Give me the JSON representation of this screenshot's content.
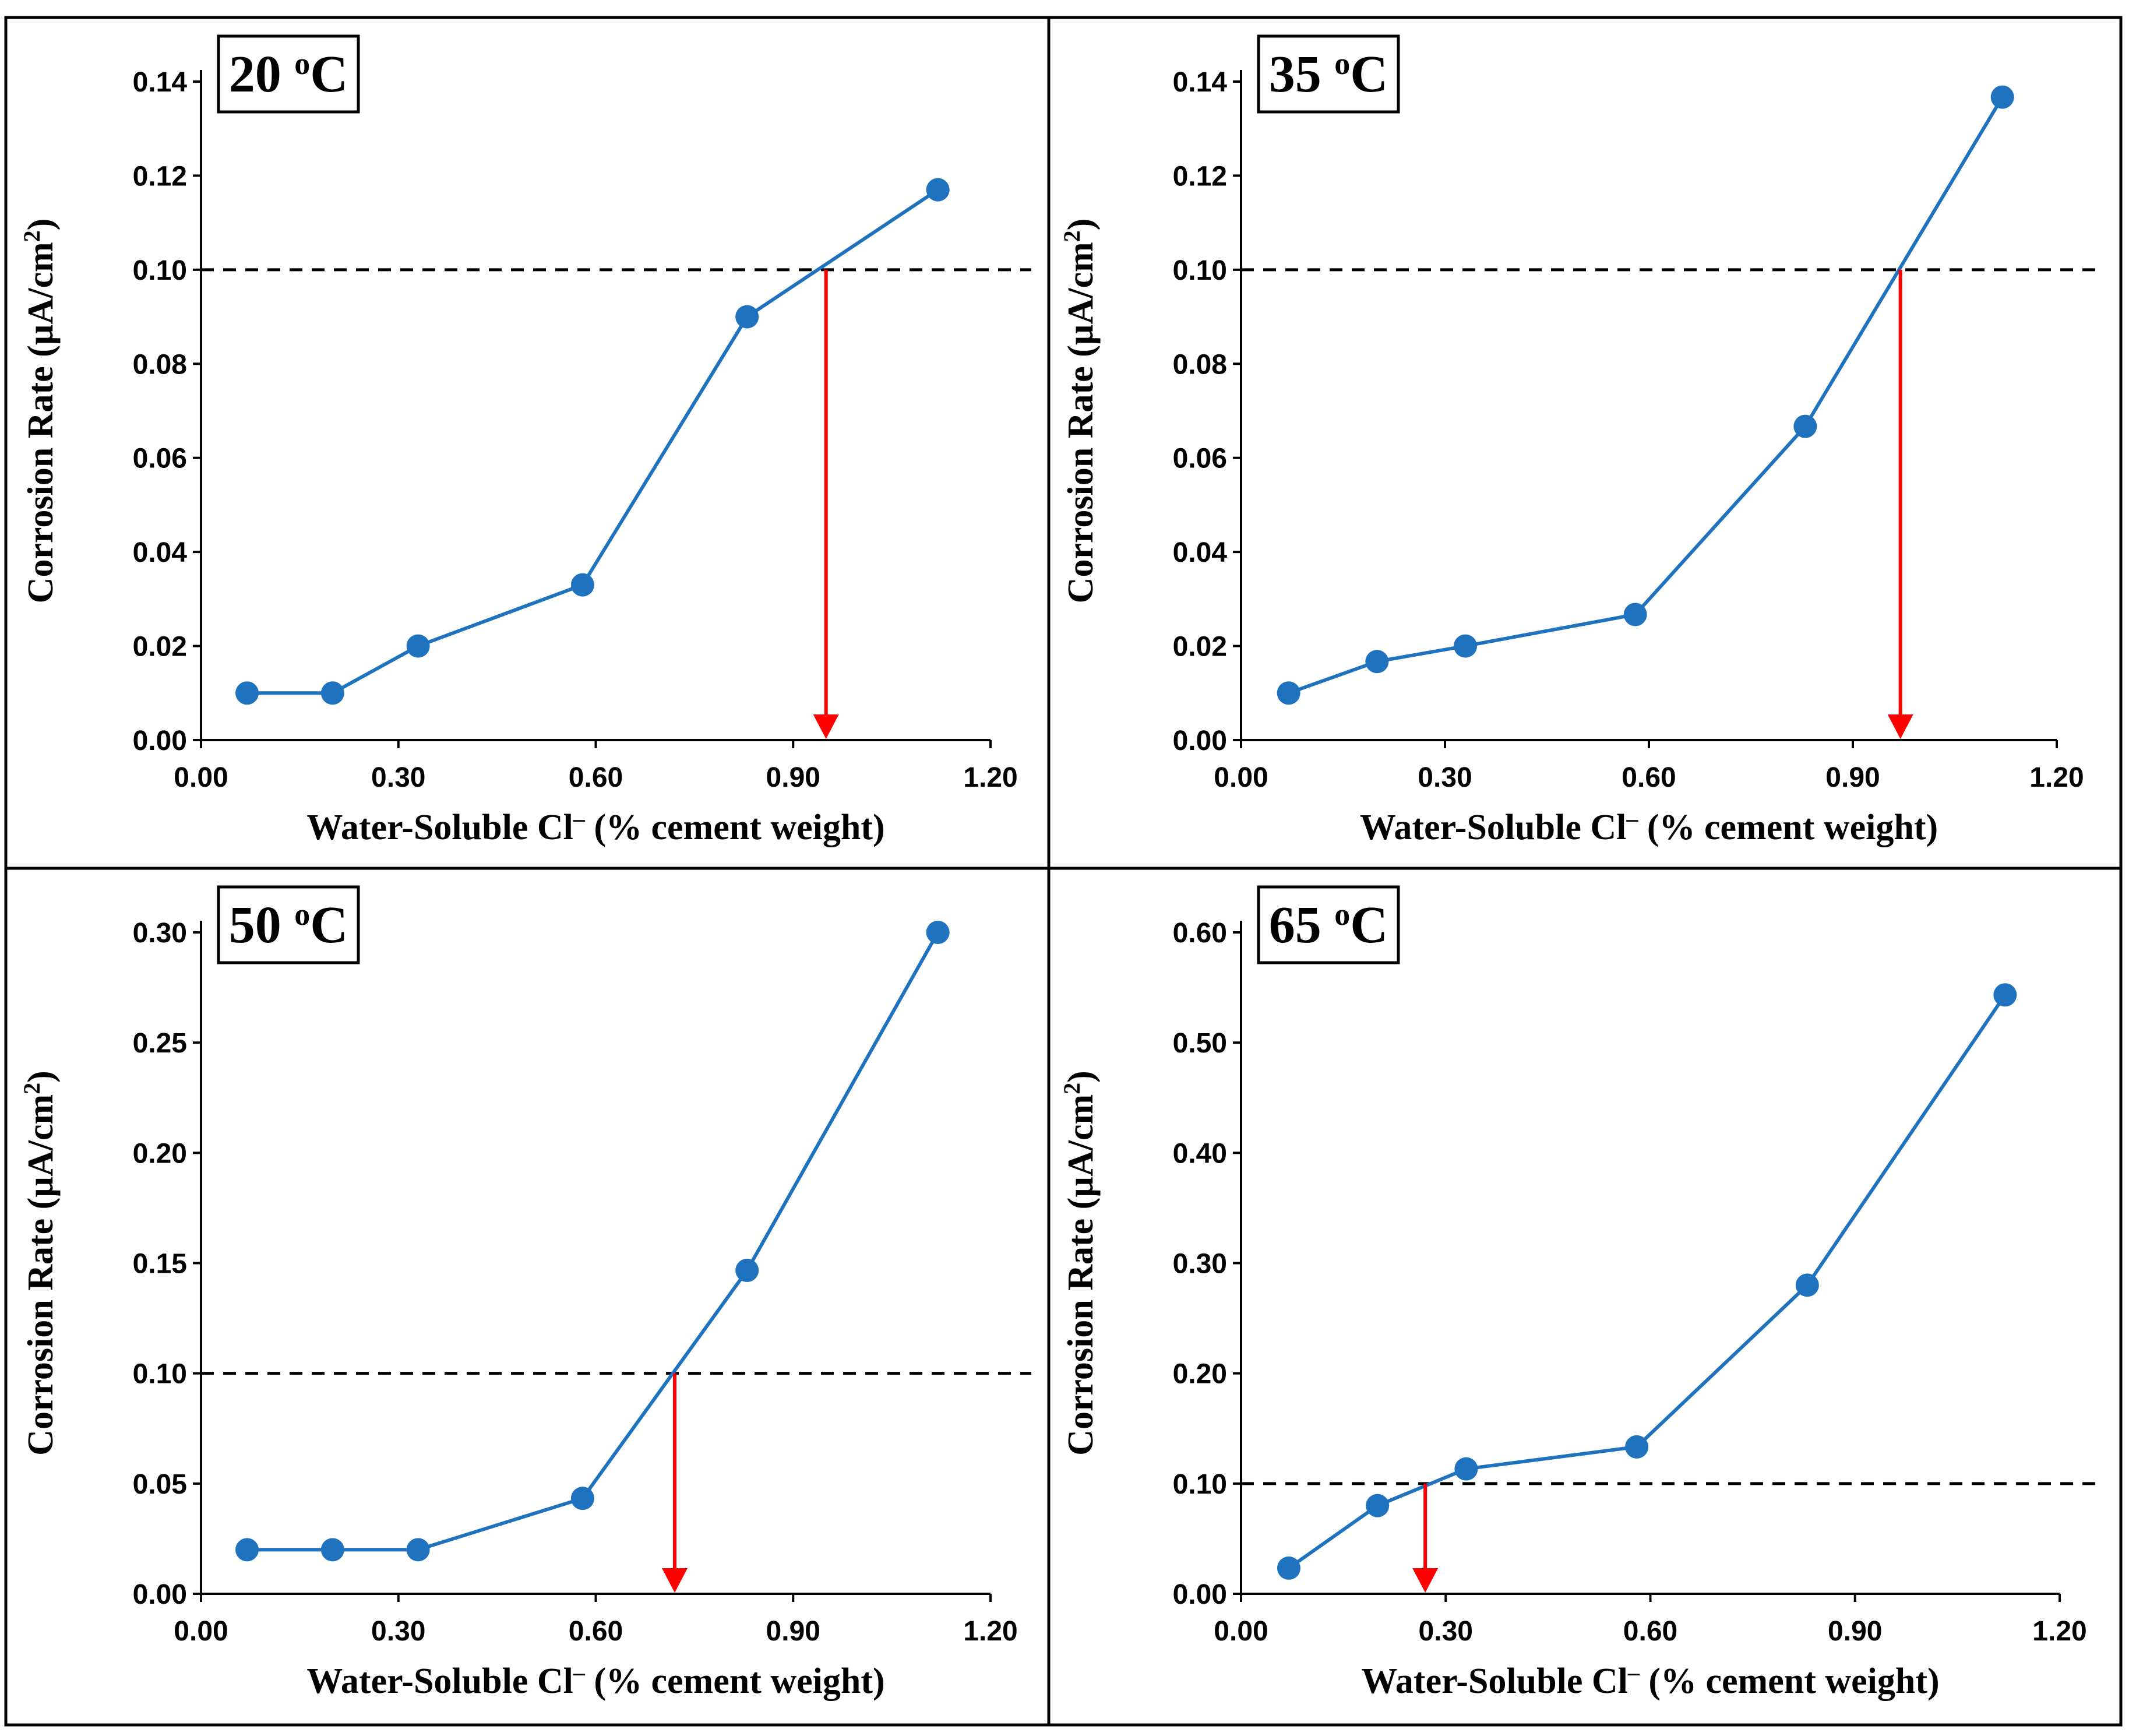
{
  "colors": {
    "series": "#1f72be",
    "marker": "#1f72be",
    "arrow": "#ff0000",
    "threshold": "#000000"
  },
  "chart_data": [
    {
      "type": "line",
      "label": "20 ",
      "label_sup": "o",
      "label_unit": "C",
      "xlabel": "Water-Soluble Cl",
      "xlabel_sup": "–",
      "xlabel_rest": " (% cement weight)",
      "ylabel": "Corrosion Rate (µA/cm",
      "ylabel_sup": "2",
      "ylabel_rest": ")",
      "xlim": [
        0,
        1.2
      ],
      "ylim": [
        0,
        0.14
      ],
      "xticks": [
        0,
        0.3,
        0.6,
        0.9,
        1.2
      ],
      "xtick_labels": [
        "0.00",
        "0.30",
        "0.60",
        "0.90",
        "1.20"
      ],
      "yticks": [
        0,
        0.02,
        0.04,
        0.06,
        0.08,
        0.1,
        0.12,
        0.14
      ],
      "ytick_labels": [
        "0.00",
        "0.02",
        "0.04",
        "0.06",
        "0.08",
        "0.10",
        "0.12",
        "0.14"
      ],
      "x": [
        0.07,
        0.2,
        0.33,
        0.58,
        0.83,
        1.12
      ],
      "y": [
        0.01,
        0.01,
        0.02,
        0.033,
        0.09,
        0.117
      ],
      "threshold": 0.1,
      "arrow_x": 0.95,
      "legend": "none"
    },
    {
      "type": "line",
      "label": "35 ",
      "label_sup": "o",
      "label_unit": "C",
      "xlabel": "Water-Soluble Cl",
      "xlabel_sup": "–",
      "xlabel_rest": " (% cement weight)",
      "ylabel": "Corrosion Rate (µA/cm",
      "ylabel_sup": "2",
      "ylabel_rest": ")",
      "xlim": [
        0,
        1.2
      ],
      "ylim": [
        0,
        0.14
      ],
      "xticks": [
        0,
        0.3,
        0.6,
        0.9,
        1.2
      ],
      "xtick_labels": [
        "0.00",
        "0.30",
        "0.60",
        "0.90",
        "1.20"
      ],
      "yticks": [
        0,
        0.02,
        0.04,
        0.06,
        0.08,
        0.1,
        0.12,
        0.14
      ],
      "ytick_labels": [
        "0.00",
        "0.02",
        "0.04",
        "0.06",
        "0.08",
        "0.10",
        "0.12",
        "0.14"
      ],
      "x": [
        0.07,
        0.2,
        0.33,
        0.58,
        0.83,
        1.12
      ],
      "y": [
        0.01,
        0.0167,
        0.02,
        0.0267,
        0.0667,
        0.1367
      ],
      "threshold": 0.1,
      "arrow_x": 0.97,
      "legend": "none"
    },
    {
      "type": "line",
      "label": "50 ",
      "label_sup": "o",
      "label_unit": "C",
      "xlabel": "Water-Soluble Cl",
      "xlabel_sup": "–",
      "xlabel_rest": " (% cement weight)",
      "ylabel": "Corrosion Rate (µA/cm",
      "ylabel_sup": "2",
      "ylabel_rest": ")",
      "xlim": [
        0,
        1.2
      ],
      "ylim": [
        0,
        0.3
      ],
      "xticks": [
        0,
        0.3,
        0.6,
        0.9,
        1.2
      ],
      "xtick_labels": [
        "0.00",
        "0.30",
        "0.60",
        "0.90",
        "1.20"
      ],
      "yticks": [
        0,
        0.05,
        0.1,
        0.15,
        0.2,
        0.25,
        0.3
      ],
      "ytick_labels": [
        "0.00",
        "0.05",
        "0.10",
        "0.15",
        "0.20",
        "0.25",
        "0.30"
      ],
      "x": [
        0.07,
        0.2,
        0.33,
        0.58,
        0.83,
        1.12
      ],
      "y": [
        0.02,
        0.02,
        0.02,
        0.0433,
        0.1467,
        0.3
      ],
      "threshold": 0.1,
      "arrow_x": 0.72,
      "legend": "none"
    },
    {
      "type": "line",
      "label": "65 ",
      "label_sup": "o",
      "label_unit": "C",
      "xlabel": "Water-Soluble Cl",
      "xlabel_sup": "–",
      "xlabel_rest": " (% cement weight)",
      "ylabel": "Corrosion Rate (µA/cm",
      "ylabel_sup": "2",
      "ylabel_rest": ")",
      "xlim": [
        0,
        1.2
      ],
      "ylim": [
        0,
        0.6
      ],
      "xticks": [
        0,
        0.3,
        0.6,
        0.9,
        1.2
      ],
      "xtick_labels": [
        "0.00",
        "0.30",
        "0.60",
        "0.90",
        "1.20"
      ],
      "yticks": [
        0,
        0.1,
        0.2,
        0.3,
        0.4,
        0.5,
        0.6
      ],
      "ytick_labels": [
        "0.00",
        "0.10",
        "0.20",
        "0.30",
        "0.40",
        "0.50",
        "0.60"
      ],
      "x": [
        0.07,
        0.2,
        0.33,
        0.58,
        0.83,
        1.12
      ],
      "y": [
        0.0233,
        0.08,
        0.1133,
        0.1333,
        0.28,
        0.5433
      ],
      "threshold": 0.1,
      "arrow_x": 0.27,
      "legend": "none"
    }
  ]
}
